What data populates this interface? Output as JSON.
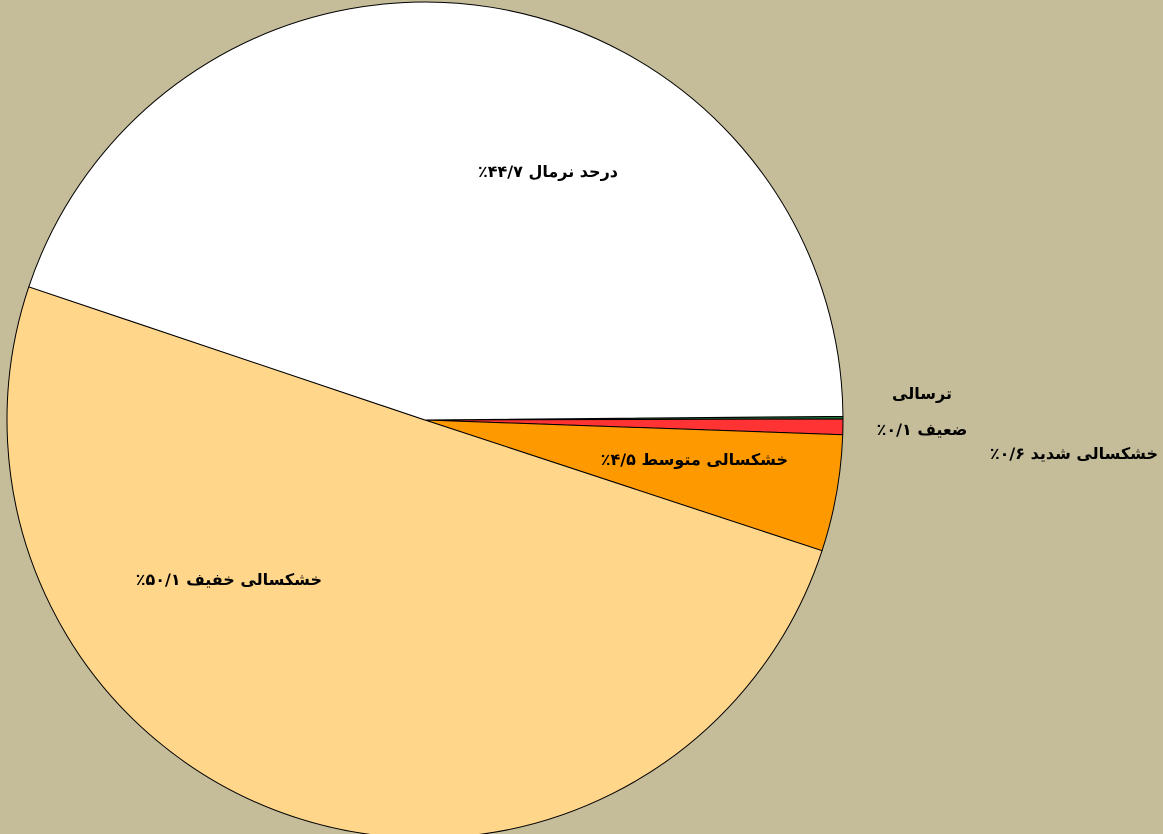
{
  "chart_data": {
    "type": "pie",
    "categories": [
      "ترسالی ضعیف",
      "خشکسالی شدید",
      "خشکسالی متوسط",
      "خشکسالی خفیف",
      "درحد نرمال"
    ],
    "values": [
      0.1,
      0.6,
      4.5,
      50.1,
      44.7
    ],
    "value_labels": [
      "۰/۱٪",
      "۰/۶٪",
      "۴/۵٪",
      "۵۰/۱٪",
      "۴۴/۷٪"
    ],
    "colors": [
      "#1f6b3a",
      "#ff3333",
      "#ff9900",
      "#ffd68a",
      "#ffffff"
    ]
  }
}
